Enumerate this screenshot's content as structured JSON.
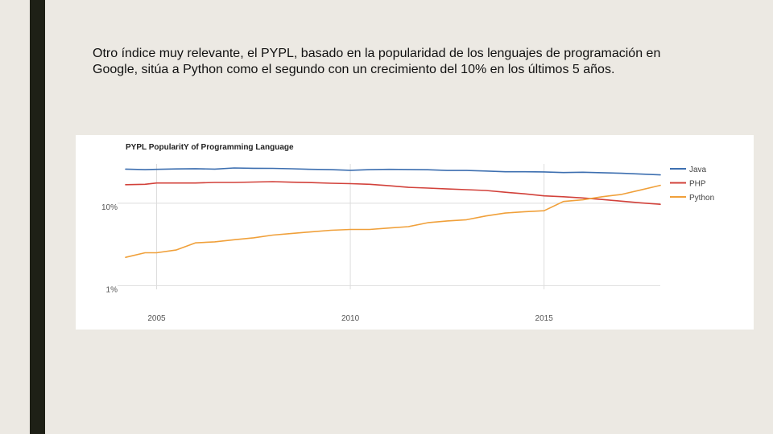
{
  "slide": {
    "paragraph": "Otro índice muy relevante, el PYPL, basado en la popularidad de los lenguajes de programación en Google, sitúa a Python como el segundo con un crecimiento del 10% en los últimos 5 años."
  },
  "colors": {
    "background": "#ece9e3",
    "side_bar": "#1e2016",
    "java": "#3d6fb0",
    "php": "#d2413a",
    "python": "#f0a03a"
  },
  "chart_data": {
    "type": "line",
    "title": "PYPL PopularitY of Programming Language",
    "y_scale": "log",
    "ylim": [
      0.9,
      30
    ],
    "xlim": [
      2004.2,
      2018.0
    ],
    "y_ticks": [
      {
        "value": 10,
        "label": "10%"
      },
      {
        "value": 1,
        "label": "1%"
      }
    ],
    "x_ticks": [
      {
        "value": 2005,
        "label": "2005"
      },
      {
        "value": 2010,
        "label": "2010"
      },
      {
        "value": 2015,
        "label": "2015"
      }
    ],
    "legend_position": "right",
    "series": [
      {
        "name": "Java",
        "color": "#3d6fb0",
        "x": [
          2004.2,
          2004.7,
          2005.0,
          2005.5,
          2006.0,
          2006.5,
          2007.0,
          2007.5,
          2008.0,
          2008.5,
          2009.0,
          2009.5,
          2010.0,
          2010.5,
          2011.0,
          2011.5,
          2012.0,
          2012.5,
          2013.0,
          2013.5,
          2014.0,
          2014.5,
          2015.0,
          2015.5,
          2016.0,
          2016.5,
          2017.0,
          2017.5,
          2018.0
        ],
        "values": [
          26.0,
          25.6,
          25.8,
          26.1,
          26.3,
          26.0,
          26.8,
          26.6,
          26.5,
          26.2,
          25.8,
          25.6,
          25.1,
          25.6,
          25.8,
          25.7,
          25.5,
          25.0,
          25.0,
          24.6,
          24.1,
          24.1,
          24.0,
          23.6,
          23.8,
          23.5,
          23.1,
          22.6,
          22.1
        ]
      },
      {
        "name": "PHP",
        "color": "#d2413a",
        "x": [
          2004.2,
          2004.7,
          2005.0,
          2005.5,
          2006.0,
          2006.5,
          2007.0,
          2007.5,
          2008.0,
          2008.5,
          2009.0,
          2009.5,
          2010.0,
          2010.5,
          2011.0,
          2011.5,
          2012.0,
          2012.5,
          2013.0,
          2013.5,
          2014.0,
          2014.5,
          2015.0,
          2015.5,
          2016.0,
          2016.5,
          2017.0,
          2017.5,
          2018.0
        ],
        "values": [
          16.8,
          17.0,
          17.6,
          17.6,
          17.6,
          17.9,
          17.9,
          18.1,
          18.3,
          18.0,
          17.8,
          17.5,
          17.3,
          17.0,
          16.3,
          15.6,
          15.3,
          14.9,
          14.6,
          14.3,
          13.6,
          13.0,
          12.3,
          12.0,
          11.6,
          11.1,
          10.6,
          10.1,
          9.7
        ]
      },
      {
        "name": "Python",
        "color": "#f0a03a",
        "x": [
          2004.2,
          2004.7,
          2005.0,
          2005.5,
          2006.0,
          2006.5,
          2007.0,
          2007.5,
          2008.0,
          2008.5,
          2009.0,
          2009.5,
          2010.0,
          2010.5,
          2011.0,
          2011.5,
          2012.0,
          2012.5,
          2013.0,
          2013.5,
          2014.0,
          2014.5,
          2015.0,
          2015.5,
          2016.0,
          2016.5,
          2017.0,
          2017.5,
          2018.0
        ],
        "values": [
          2.2,
          2.5,
          2.5,
          2.7,
          3.3,
          3.4,
          3.6,
          3.8,
          4.1,
          4.3,
          4.5,
          4.7,
          4.8,
          4.8,
          5.0,
          5.2,
          5.8,
          6.1,
          6.3,
          7.0,
          7.6,
          7.9,
          8.1,
          10.5,
          11.0,
          12.0,
          12.8,
          14.5,
          16.5
        ]
      }
    ]
  }
}
